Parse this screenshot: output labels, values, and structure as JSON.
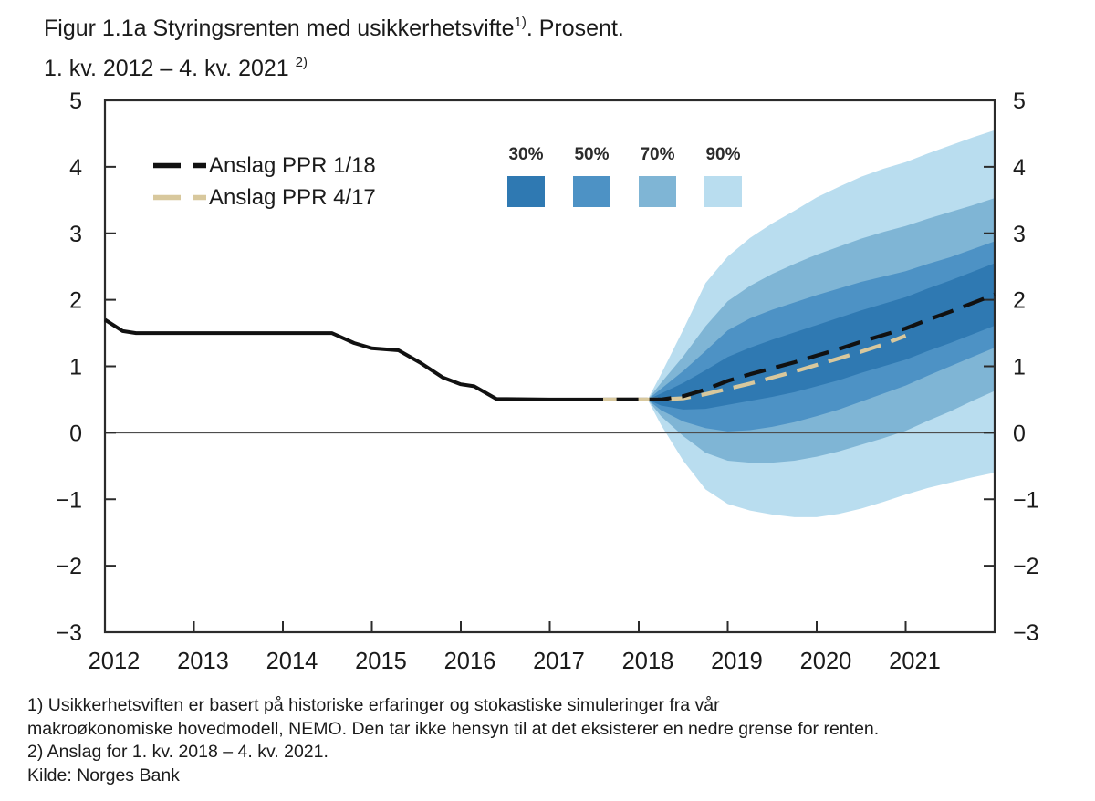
{
  "title": {
    "line1_main": "Figur 1.1a Styringsrenten med usikkerhetsvifte",
    "line1_sup": "1)",
    "line1_tail": ". Prosent.",
    "line2_main": "1. kv. 2012 – 4. kv. 2021",
    "line2_sup": "2)"
  },
  "legend": {
    "series": [
      {
        "label": "Anslag PPR 1/18",
        "color": "#111111"
      },
      {
        "label": "Anslag PPR 4/17",
        "color": "#d8c89d"
      }
    ],
    "fan": [
      {
        "label": "30%",
        "color": "#2f79b2"
      },
      {
        "label": "50%",
        "color": "#4d92c5"
      },
      {
        "label": "70%",
        "color": "#7fb5d5"
      },
      {
        "label": "90%",
        "color": "#b9ddef"
      }
    ]
  },
  "footnotes": {
    "line1": "1) Usikkerhetsviften er basert på historiske erfaringer og stokastiske simuleringer fra vår",
    "line2": "makroøkonomiske hovedmodell, NEMO. Den tar ikke hensyn til at det eksisterer en nedre grense for renten.",
    "line3": "2) Anslag for 1. kv. 2018 – 4. kv. 2021.",
    "line4": "Kilde: Norges Bank"
  },
  "colors": {
    "axis": "#2b2b2b",
    "zero_line": "#4d4d4d",
    "text": "#1b1b1b",
    "history": "#111111",
    "ppr118": "#111111",
    "ppr417": "#d8c89d"
  },
  "chart_data": {
    "type": "line",
    "title": "Styringsrenten med usikkerhetsvifte. Prosent. 1. kv. 2012 – 4. kv. 2021",
    "xlabel": "",
    "ylabel": "Prosent",
    "xlim": [
      2012,
      2022
    ],
    "ylim": [
      -3,
      5
    ],
    "grid": false,
    "legend_position": "top-left",
    "ytick_values": [
      5,
      4,
      3,
      2,
      1,
      0,
      -1,
      -2,
      -3
    ],
    "ytick_labels": [
      "5",
      "4",
      "3",
      "2",
      "1",
      "0",
      "−1",
      "−2",
      "−3"
    ],
    "xtick_mark_years": [
      2012,
      2013,
      2014,
      2015,
      2016,
      2017,
      2018,
      2019,
      2020,
      2021,
      2022
    ],
    "xtick_label_years": [
      2012,
      2013,
      2014,
      2015,
      2016,
      2017,
      2018,
      2019,
      2020,
      2021
    ],
    "xtick_labels": [
      "2012",
      "2013",
      "2014",
      "2015",
      "2016",
      "2017",
      "2018",
      "2019",
      "2020",
      "2021"
    ],
    "series": [
      {
        "name": "Styringsrenten (historisk)",
        "style": "solid",
        "color": "#111111",
        "x": [
          2012.0,
          2012.2,
          2012.35,
          2013.0,
          2013.5,
          2014.0,
          2014.55,
          2014.8,
          2015.0,
          2015.3,
          2015.55,
          2015.8,
          2016.0,
          2016.15,
          2016.4,
          2017.0,
          2017.5,
          2018.1
        ],
        "y": [
          1.7,
          1.53,
          1.5,
          1.5,
          1.5,
          1.5,
          1.5,
          1.35,
          1.27,
          1.24,
          1.05,
          0.83,
          0.73,
          0.7,
          0.51,
          0.5,
          0.5,
          0.5
        ]
      },
      {
        "name": "Anslag PPR 4/17",
        "style": "dashed",
        "color": "#d8c89d",
        "x": [
          2017.6,
          2018.0,
          2018.25,
          2018.5,
          2018.75,
          2019.0,
          2019.25,
          2019.5,
          2019.75,
          2020.0,
          2020.25,
          2020.5,
          2020.75,
          2021.0
        ],
        "y": [
          0.5,
          0.5,
          0.5,
          0.52,
          0.58,
          0.66,
          0.74,
          0.83,
          0.92,
          1.02,
          1.12,
          1.22,
          1.33,
          1.46
        ]
      },
      {
        "name": "Anslag PPR 1/18",
        "style": "dashed",
        "color": "#111111",
        "x": [
          2017.75,
          2018.0,
          2018.1,
          2018.25,
          2018.5,
          2018.75,
          2019.0,
          2019.25,
          2019.5,
          2019.75,
          2020.0,
          2020.25,
          2020.5,
          2020.75,
          2021.0,
          2021.25,
          2021.5,
          2021.75,
          2022.0
        ],
        "y": [
          0.5,
          0.5,
          0.5,
          0.5,
          0.55,
          0.65,
          0.78,
          0.88,
          0.97,
          1.06,
          1.16,
          1.26,
          1.37,
          1.47,
          1.57,
          1.7,
          1.82,
          1.95,
          2.08
        ]
      }
    ],
    "fan_x": [
      2018.1,
      2018.25,
      2018.5,
      2018.75,
      2019.0,
      2019.25,
      2019.5,
      2019.75,
      2020.0,
      2020.25,
      2020.5,
      2020.75,
      2021.0,
      2021.25,
      2021.5,
      2021.75,
      2022.0
    ],
    "fan_bands": [
      {
        "probability": "90%",
        "color": "#b9ddef",
        "upper": [
          0.5,
          0.88,
          1.55,
          2.25,
          2.65,
          2.93,
          3.15,
          3.34,
          3.54,
          3.7,
          3.85,
          3.97,
          4.07,
          4.2,
          4.32,
          4.44,
          4.55
        ],
        "lower": [
          0.5,
          0.12,
          -0.42,
          -0.85,
          -1.07,
          -1.17,
          -1.23,
          -1.27,
          -1.27,
          -1.22,
          -1.14,
          -1.04,
          -0.93,
          -0.83,
          -0.75,
          -0.67,
          -0.6
        ]
      },
      {
        "probability": "70%",
        "color": "#7fb5d5",
        "upper": [
          0.5,
          0.75,
          1.15,
          1.6,
          1.98,
          2.21,
          2.39,
          2.54,
          2.68,
          2.8,
          2.92,
          3.02,
          3.11,
          3.22,
          3.32,
          3.42,
          3.53
        ],
        "lower": [
          0.5,
          0.25,
          -0.05,
          -0.3,
          -0.42,
          -0.45,
          -0.45,
          -0.42,
          -0.36,
          -0.28,
          -0.18,
          -0.08,
          0.03,
          0.18,
          0.32,
          0.48,
          0.63
        ]
      },
      {
        "probability": "50%",
        "color": "#4d92c5",
        "upper": [
          0.5,
          0.66,
          0.93,
          1.23,
          1.54,
          1.72,
          1.85,
          1.96,
          2.07,
          2.17,
          2.27,
          2.35,
          2.43,
          2.54,
          2.64,
          2.76,
          2.88
        ],
        "lower": [
          0.5,
          0.34,
          0.17,
          0.07,
          0.02,
          0.04,
          0.09,
          0.16,
          0.25,
          0.35,
          0.47,
          0.59,
          0.71,
          0.86,
          1.0,
          1.14,
          1.28
        ]
      },
      {
        "probability": "30%",
        "color": "#2f79b2",
        "upper": [
          0.5,
          0.59,
          0.75,
          0.94,
          1.14,
          1.28,
          1.4,
          1.51,
          1.62,
          1.73,
          1.84,
          1.94,
          2.04,
          2.17,
          2.29,
          2.42,
          2.55
        ],
        "lower": [
          0.5,
          0.41,
          0.35,
          0.36,
          0.42,
          0.48,
          0.54,
          0.61,
          0.7,
          0.79,
          0.9,
          1.0,
          1.1,
          1.23,
          1.35,
          1.48,
          1.61
        ]
      }
    ]
  }
}
